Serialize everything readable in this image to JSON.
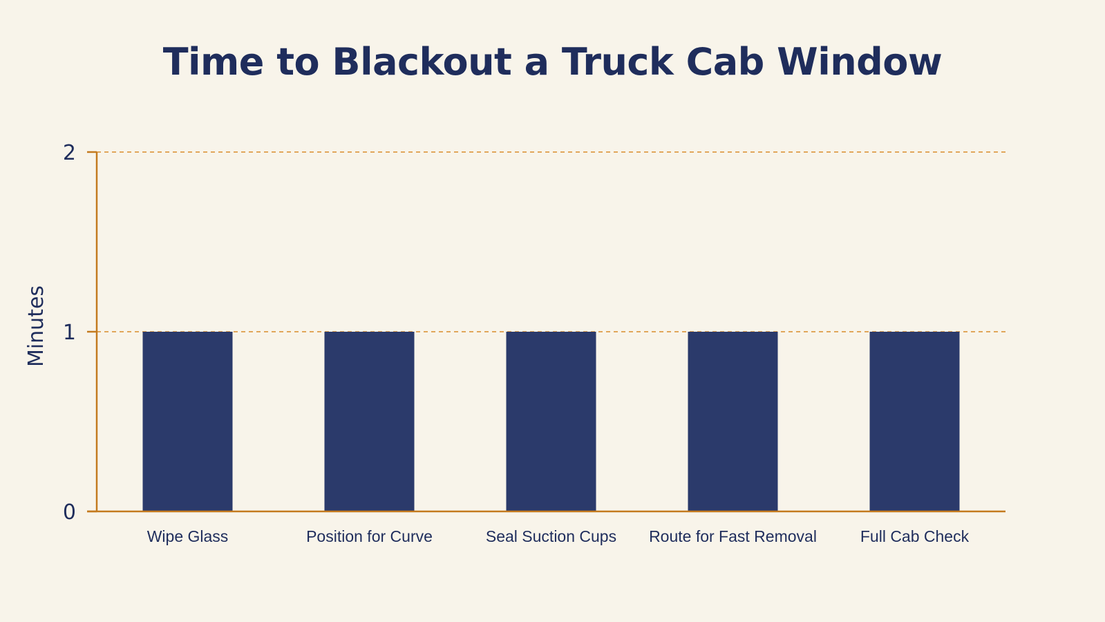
{
  "chart_data": {
    "type": "bar",
    "title": "Time to Blackout a Truck Cab Window",
    "xlabel": "",
    "ylabel": "Minutes",
    "categories": [
      "Wipe Glass",
      "Position for Curve",
      "Seal Suction Cups",
      "Route for Fast Removal",
      "Full Cab Check"
    ],
    "values": [
      1,
      1,
      1,
      1,
      1
    ],
    "ylim": [
      0,
      2
    ],
    "yticks": [
      0,
      1,
      2
    ],
    "grid": true,
    "legend": "none",
    "colors": {
      "bar": "#2b3a6b",
      "axis": "#c47a1e",
      "grid": "#d98c2b",
      "text": "#1f2d5c",
      "background": "#f8f4ea"
    }
  }
}
